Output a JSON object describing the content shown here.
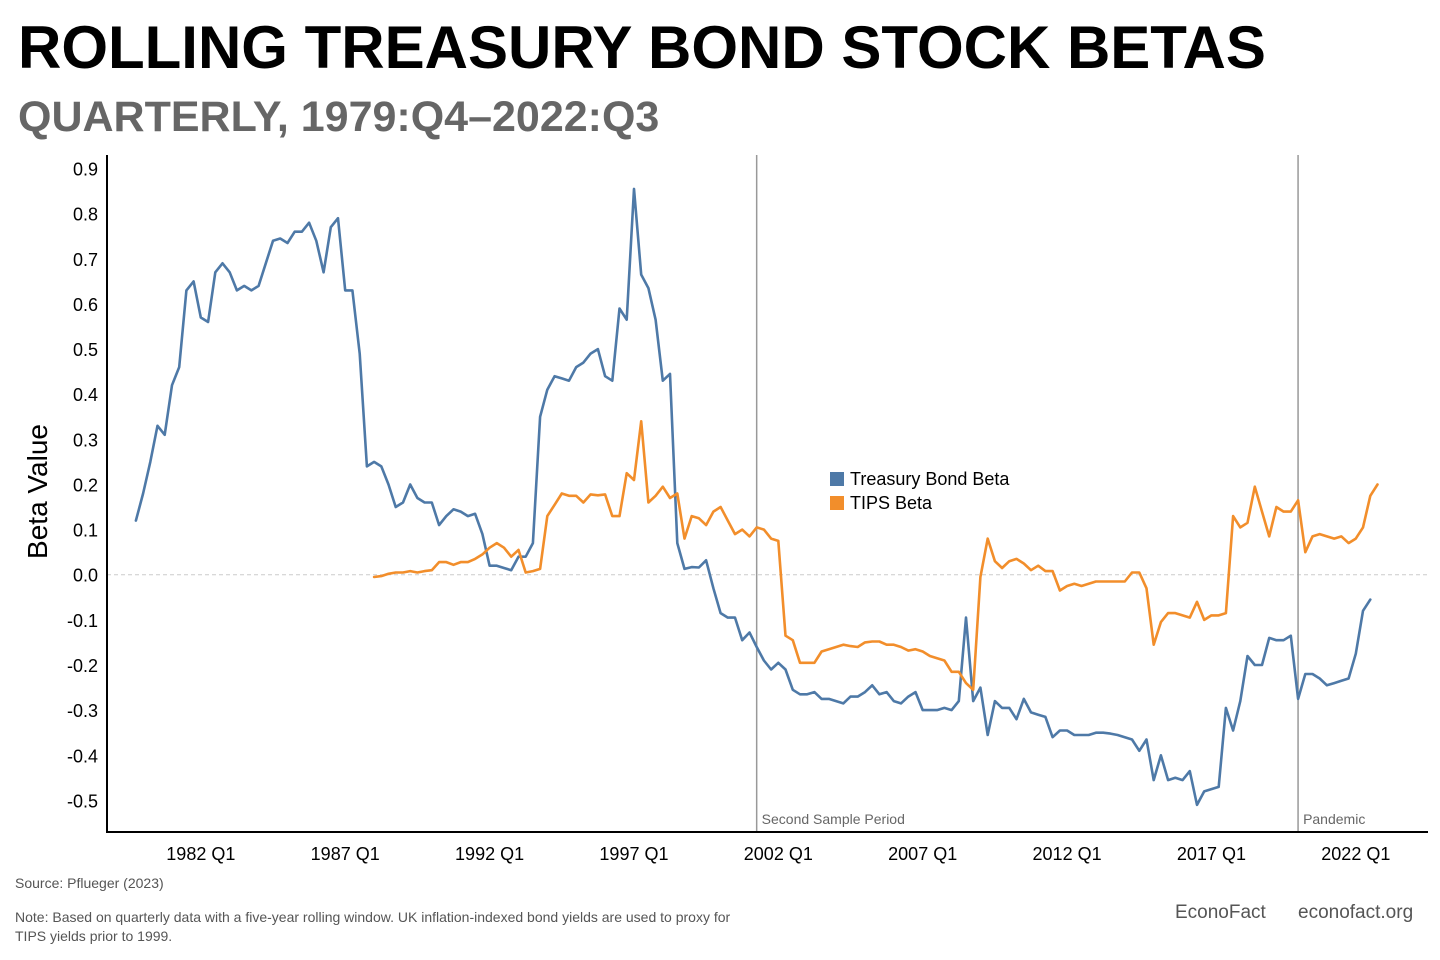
{
  "title": "ROLLING TREASURY BOND STOCK BETAS",
  "subtitle": "QUARTERLY, 1979:Q4–2022:Q3",
  "source": "Source: Pflueger (2023)",
  "note": "Note: Based on quarterly data with a five-year rolling window. UK inflation-indexed bond yields are used to proxy for TIPS yields prior to 1999.",
  "brand": "EconoFact",
  "site": "econofact.org",
  "chart_data": {
    "type": "line",
    "ylabel": "Beta Value",
    "xlabel": "",
    "ylim": [
      -0.57,
      0.93
    ],
    "yticks": [
      "0.9",
      "0.8",
      "0.7",
      "0.6",
      "0.5",
      "0.4",
      "0.3",
      "0.2",
      "0.1",
      "0.0",
      "-0.1",
      "-0.2",
      "-0.3",
      "-0.4",
      "-0.5"
    ],
    "ytick_values": [
      0.9,
      0.8,
      0.7,
      0.6,
      0.5,
      0.4,
      0.3,
      0.2,
      0.1,
      0.0,
      -0.1,
      -0.2,
      -0.3,
      -0.4,
      -0.5
    ],
    "xlim": [
      1978.75,
      2024.5
    ],
    "xticks": [
      {
        "label": "1982 Q1",
        "t": 1982.0
      },
      {
        "label": "1987 Q1",
        "t": 1987.0
      },
      {
        "label": "1992 Q1",
        "t": 1992.0
      },
      {
        "label": "1997 Q1",
        "t": 1997.0
      },
      {
        "label": "2002 Q1",
        "t": 2002.0
      },
      {
        "label": "2007 Q1",
        "t": 2007.0
      },
      {
        "label": "2012 Q1",
        "t": 2012.0
      },
      {
        "label": "2017 Q1",
        "t": 2017.0
      },
      {
        "label": "2022 Q1",
        "t": 2022.0
      }
    ],
    "reference_lines": [
      {
        "label": "Second Sample Period",
        "t": 2001.25
      },
      {
        "label": "Pandemic",
        "t": 2020.0
      }
    ],
    "legend": {
      "placement": "center-right"
    },
    "series": [
      {
        "name": "Treasury Bond Beta",
        "color": "#4e79a7",
        "start": 1979.75,
        "step": 0.25,
        "values": [
          0.12,
          0.18,
          0.25,
          0.33,
          0.31,
          0.42,
          0.46,
          0.63,
          0.65,
          0.57,
          0.56,
          0.67,
          0.69,
          0.67,
          0.63,
          0.64,
          0.63,
          0.64,
          0.69,
          0.74,
          0.745,
          0.735,
          0.76,
          0.76,
          0.78,
          0.74,
          0.67,
          0.77,
          0.79,
          0.63,
          0.63,
          0.49,
          0.24,
          0.25,
          0.24,
          0.2,
          0.15,
          0.16,
          0.2,
          0.17,
          0.16,
          0.16,
          0.11,
          0.13,
          0.145,
          0.14,
          0.13,
          0.135,
          0.09,
          0.02,
          0.02,
          0.015,
          0.01,
          0.04,
          0.04,
          0.07,
          0.35,
          0.41,
          0.44,
          0.435,
          0.43,
          0.46,
          0.47,
          0.49,
          0.5,
          0.44,
          0.43,
          0.59,
          0.565,
          0.855,
          0.665,
          0.635,
          0.565,
          0.43,
          0.445,
          0.07,
          0.013,
          0.017,
          0.016,
          0.032,
          -0.03,
          -0.085,
          -0.095,
          -0.095,
          -0.145,
          -0.128,
          -0.16,
          -0.19,
          -0.21,
          -0.195,
          -0.21,
          -0.255,
          -0.265,
          -0.265,
          -0.26,
          -0.275,
          -0.275,
          -0.28,
          -0.285,
          -0.27,
          -0.27,
          -0.26,
          -0.245,
          -0.265,
          -0.26,
          -0.28,
          -0.285,
          -0.27,
          -0.26,
          -0.3,
          -0.3,
          -0.3,
          -0.295,
          -0.3,
          -0.28,
          -0.095,
          -0.28,
          -0.25,
          -0.355,
          -0.28,
          -0.295,
          -0.295,
          -0.32,
          -0.275,
          -0.305,
          -0.31,
          -0.315,
          -0.36,
          -0.345,
          -0.345,
          -0.355,
          -0.355,
          -0.355,
          -0.35,
          -0.35,
          -0.352,
          -0.355,
          -0.36,
          -0.365,
          -0.39,
          -0.365,
          -0.455,
          -0.4,
          -0.455,
          -0.45,
          -0.455,
          -0.435,
          -0.51,
          -0.48,
          -0.475,
          -0.47,
          -0.295,
          -0.345,
          -0.28,
          -0.18,
          -0.2,
          -0.2,
          -0.14,
          -0.145,
          -0.145,
          -0.135,
          -0.275,
          -0.22,
          -0.22,
          -0.23,
          -0.245,
          -0.24,
          -0.235,
          -0.23,
          -0.175,
          -0.08,
          -0.055
        ]
      },
      {
        "name": "TIPS Beta",
        "color": "#f28e2b",
        "start": 1988.0,
        "step": 0.25,
        "values": [
          -0.005,
          -0.003,
          0.002,
          0.005,
          0.005,
          0.008,
          0.005,
          0.008,
          0.01,
          0.028,
          0.028,
          0.022,
          0.028,
          0.028,
          0.035,
          0.045,
          0.06,
          0.07,
          0.06,
          0.04,
          0.055,
          0.005,
          0.008,
          0.013,
          0.13,
          0.155,
          0.18,
          0.175,
          0.175,
          0.16,
          0.178,
          0.176,
          0.178,
          0.13,
          0.13,
          0.225,
          0.21,
          0.34,
          0.16,
          0.175,
          0.195,
          0.17,
          0.18,
          0.08,
          0.13,
          0.125,
          0.11,
          0.14,
          0.15,
          0.12,
          0.09,
          0.1,
          0.085,
          0.105,
          0.1,
          0.08,
          0.075,
          -0.135,
          -0.145,
          -0.195,
          -0.195,
          -0.195,
          -0.17,
          -0.165,
          -0.16,
          -0.155,
          -0.158,
          -0.16,
          -0.15,
          -0.148,
          -0.148,
          -0.155,
          -0.155,
          -0.16,
          -0.168,
          -0.165,
          -0.17,
          -0.18,
          -0.185,
          -0.19,
          -0.215,
          -0.215,
          -0.24,
          -0.255,
          -0.005,
          0.08,
          0.03,
          0.015,
          0.03,
          0.035,
          0.025,
          0.01,
          0.02,
          0.008,
          0.008,
          -0.035,
          -0.025,
          -0.02,
          -0.025,
          -0.02,
          -0.015,
          -0.015,
          -0.015,
          -0.015,
          -0.015,
          0.005,
          0.005,
          -0.03,
          -0.155,
          -0.105,
          -0.085,
          -0.085,
          -0.09,
          -0.095,
          -0.06,
          -0.1,
          -0.09,
          -0.09,
          -0.085,
          0.13,
          0.105,
          0.115,
          0.195,
          0.14,
          0.085,
          0.15,
          0.14,
          0.14,
          0.165,
          0.05,
          0.085,
          0.09,
          0.085,
          0.08,
          0.085,
          0.07,
          0.08,
          0.105,
          0.175,
          0.2
        ]
      }
    ]
  }
}
